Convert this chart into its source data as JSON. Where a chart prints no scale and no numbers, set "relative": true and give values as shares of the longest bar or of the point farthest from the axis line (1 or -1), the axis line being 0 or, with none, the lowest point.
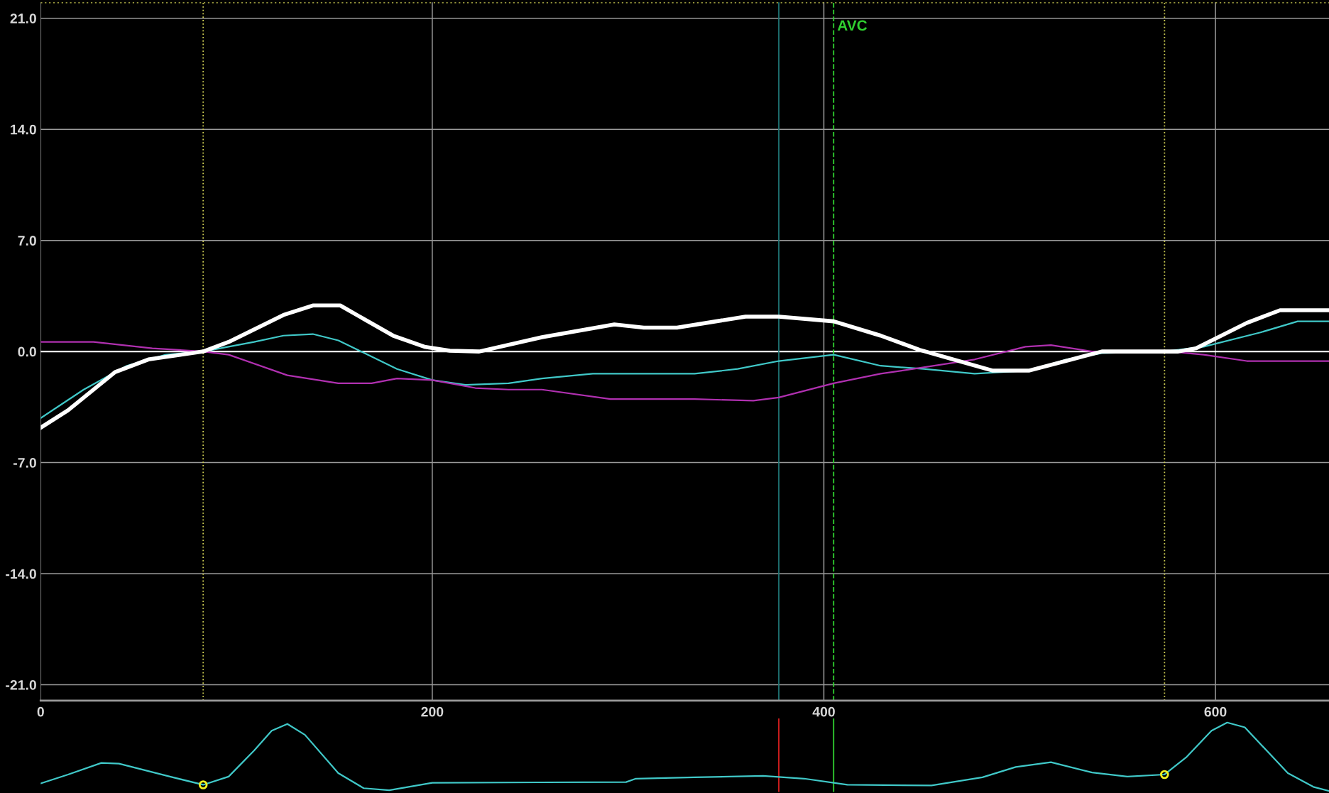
{
  "chart_data": [
    {
      "type": "line",
      "xlim": [
        0,
        658
      ],
      "ylim": [
        -22,
        22
      ],
      "xticks": [
        0,
        200,
        400,
        600
      ],
      "yticks": [
        {
          "value": -21,
          "label": "-21.0"
        },
        {
          "value": -14,
          "label": "-14.0"
        },
        {
          "value": -7,
          "label": "-7.0"
        },
        {
          "value": 0,
          "label": "0.0"
        },
        {
          "value": 7,
          "label": "7.0"
        },
        {
          "value": 14,
          "label": "14.0"
        },
        {
          "value": 21,
          "label": "21.0"
        }
      ],
      "grid": true,
      "marker": "none",
      "series": [
        {
          "color": "#40c8c8",
          "x": [
            0,
            22,
            44,
            64,
            83,
            109,
            124,
            139,
            152,
            182,
            200,
            217,
            239,
            256,
            282,
            334,
            356,
            377,
            405,
            429,
            451,
            477,
            505,
            524,
            542,
            574,
            594,
            623,
            642,
            658
          ],
          "values": [
            -4.2,
            -2.4,
            -0.9,
            -0.2,
            0,
            0.6,
            1.0,
            1.1,
            0.7,
            -1.1,
            -1.8,
            -2.1,
            -2.0,
            -1.7,
            -1.4,
            -1.4,
            -1.1,
            -0.6,
            -0.2,
            -0.9,
            -1.1,
            -1.4,
            -1.2,
            -0.5,
            -0.1,
            0,
            0.3,
            1.2,
            1.9,
            1.9
          ]
        },
        {
          "color": "#b030b0",
          "x": [
            0,
            27,
            57,
            83,
            96,
            126,
            152,
            169,
            182,
            200,
            222,
            239,
            256,
            291,
            334,
            364,
            377,
            405,
            429,
            451,
            477,
            503,
            516,
            537,
            577,
            594,
            616,
            658
          ],
          "values": [
            0.6,
            0.6,
            0.2,
            0,
            -0.2,
            -1.5,
            -2.0,
            -2.0,
            -1.7,
            -1.8,
            -2.3,
            -2.4,
            -2.4,
            -3.0,
            -3.0,
            -3.1,
            -2.9,
            -2.0,
            -1.4,
            -1.0,
            -0.5,
            0.3,
            0.4,
            0,
            0,
            -0.2,
            -0.6,
            -0.6
          ]
        },
        {
          "color": "#ffffff",
          "x": [
            0,
            14,
            38,
            55,
            83,
            96,
            124,
            139,
            153,
            180,
            196,
            209,
            224,
            256,
            293,
            308,
            325,
            360,
            377,
            405,
            429,
            449,
            486,
            505,
            542,
            581,
            590,
            616,
            633,
            658
          ],
          "values": [
            -4.8,
            -3.7,
            -1.3,
            -0.5,
            0,
            0.6,
            2.3,
            2.9,
            2.9,
            1.0,
            0.3,
            0.05,
            0,
            0.9,
            1.7,
            1.5,
            1.5,
            2.2,
            2.2,
            1.9,
            1.0,
            0.1,
            -1.2,
            -1.2,
            0,
            0,
            0.2,
            1.8,
            2.6,
            2.6
          ]
        }
      ],
      "ref_lines": [
        {
          "axis": "y",
          "value": 0,
          "color": "#ffffff",
          "line_style": "solid"
        },
        {
          "axis": "y",
          "value": 22,
          "color": "#c8c850",
          "line_style": "dotted"
        },
        {
          "axis": "x",
          "value": 83,
          "color": "#c8c850",
          "line_style": "dotted"
        },
        {
          "axis": "x",
          "value": 574,
          "color": "#c8c850",
          "line_style": "dotted"
        },
        {
          "axis": "x",
          "value": 377,
          "color": "#207878",
          "line_style": "solid"
        },
        {
          "axis": "x",
          "value": 405,
          "label": "AVC",
          "color": "#30d030",
          "line_style": "dashed"
        }
      ]
    },
    {
      "type": "line",
      "relative": true,
      "xlim": [
        0,
        658
      ],
      "grid": false,
      "marker": "none",
      "series": [
        {
          "color": "#40c8c8",
          "x": [
            0,
            14,
            31,
            40,
            66,
            83,
            96,
            109,
            118,
            126,
            135,
            152,
            165,
            178,
            200,
            299,
            304,
            334,
            369,
            390,
            412,
            455,
            481,
            498,
            516,
            537,
            555,
            574,
            585,
            598,
            606,
            615,
            637,
            650,
            658
          ],
          "values": [
            0.11,
            0.24,
            0.41,
            0.4,
            0.21,
            0.09,
            0.21,
            0.59,
            0.88,
            0.98,
            0.82,
            0.26,
            0.04,
            0.01,
            0.12,
            0.13,
            0.18,
            0.2,
            0.22,
            0.18,
            0.09,
            0.08,
            0.2,
            0.35,
            0.42,
            0.27,
            0.21,
            0.24,
            0.49,
            0.88,
            1.0,
            0.93,
            0.26,
            0.06,
            0.0
          ]
        },
        {
          "type": "scatter",
          "marker": "circle",
          "color": "#f0f020",
          "x": [
            83,
            574
          ],
          "values": [
            0.09,
            0.24
          ]
        }
      ],
      "ref_lines": [
        {
          "axis": "x",
          "value": 405,
          "color": "#30d030",
          "line_style": "solid"
        },
        {
          "axis": "x",
          "value": 377,
          "color": "#e02020",
          "line_style": "solid"
        }
      ]
    }
  ]
}
